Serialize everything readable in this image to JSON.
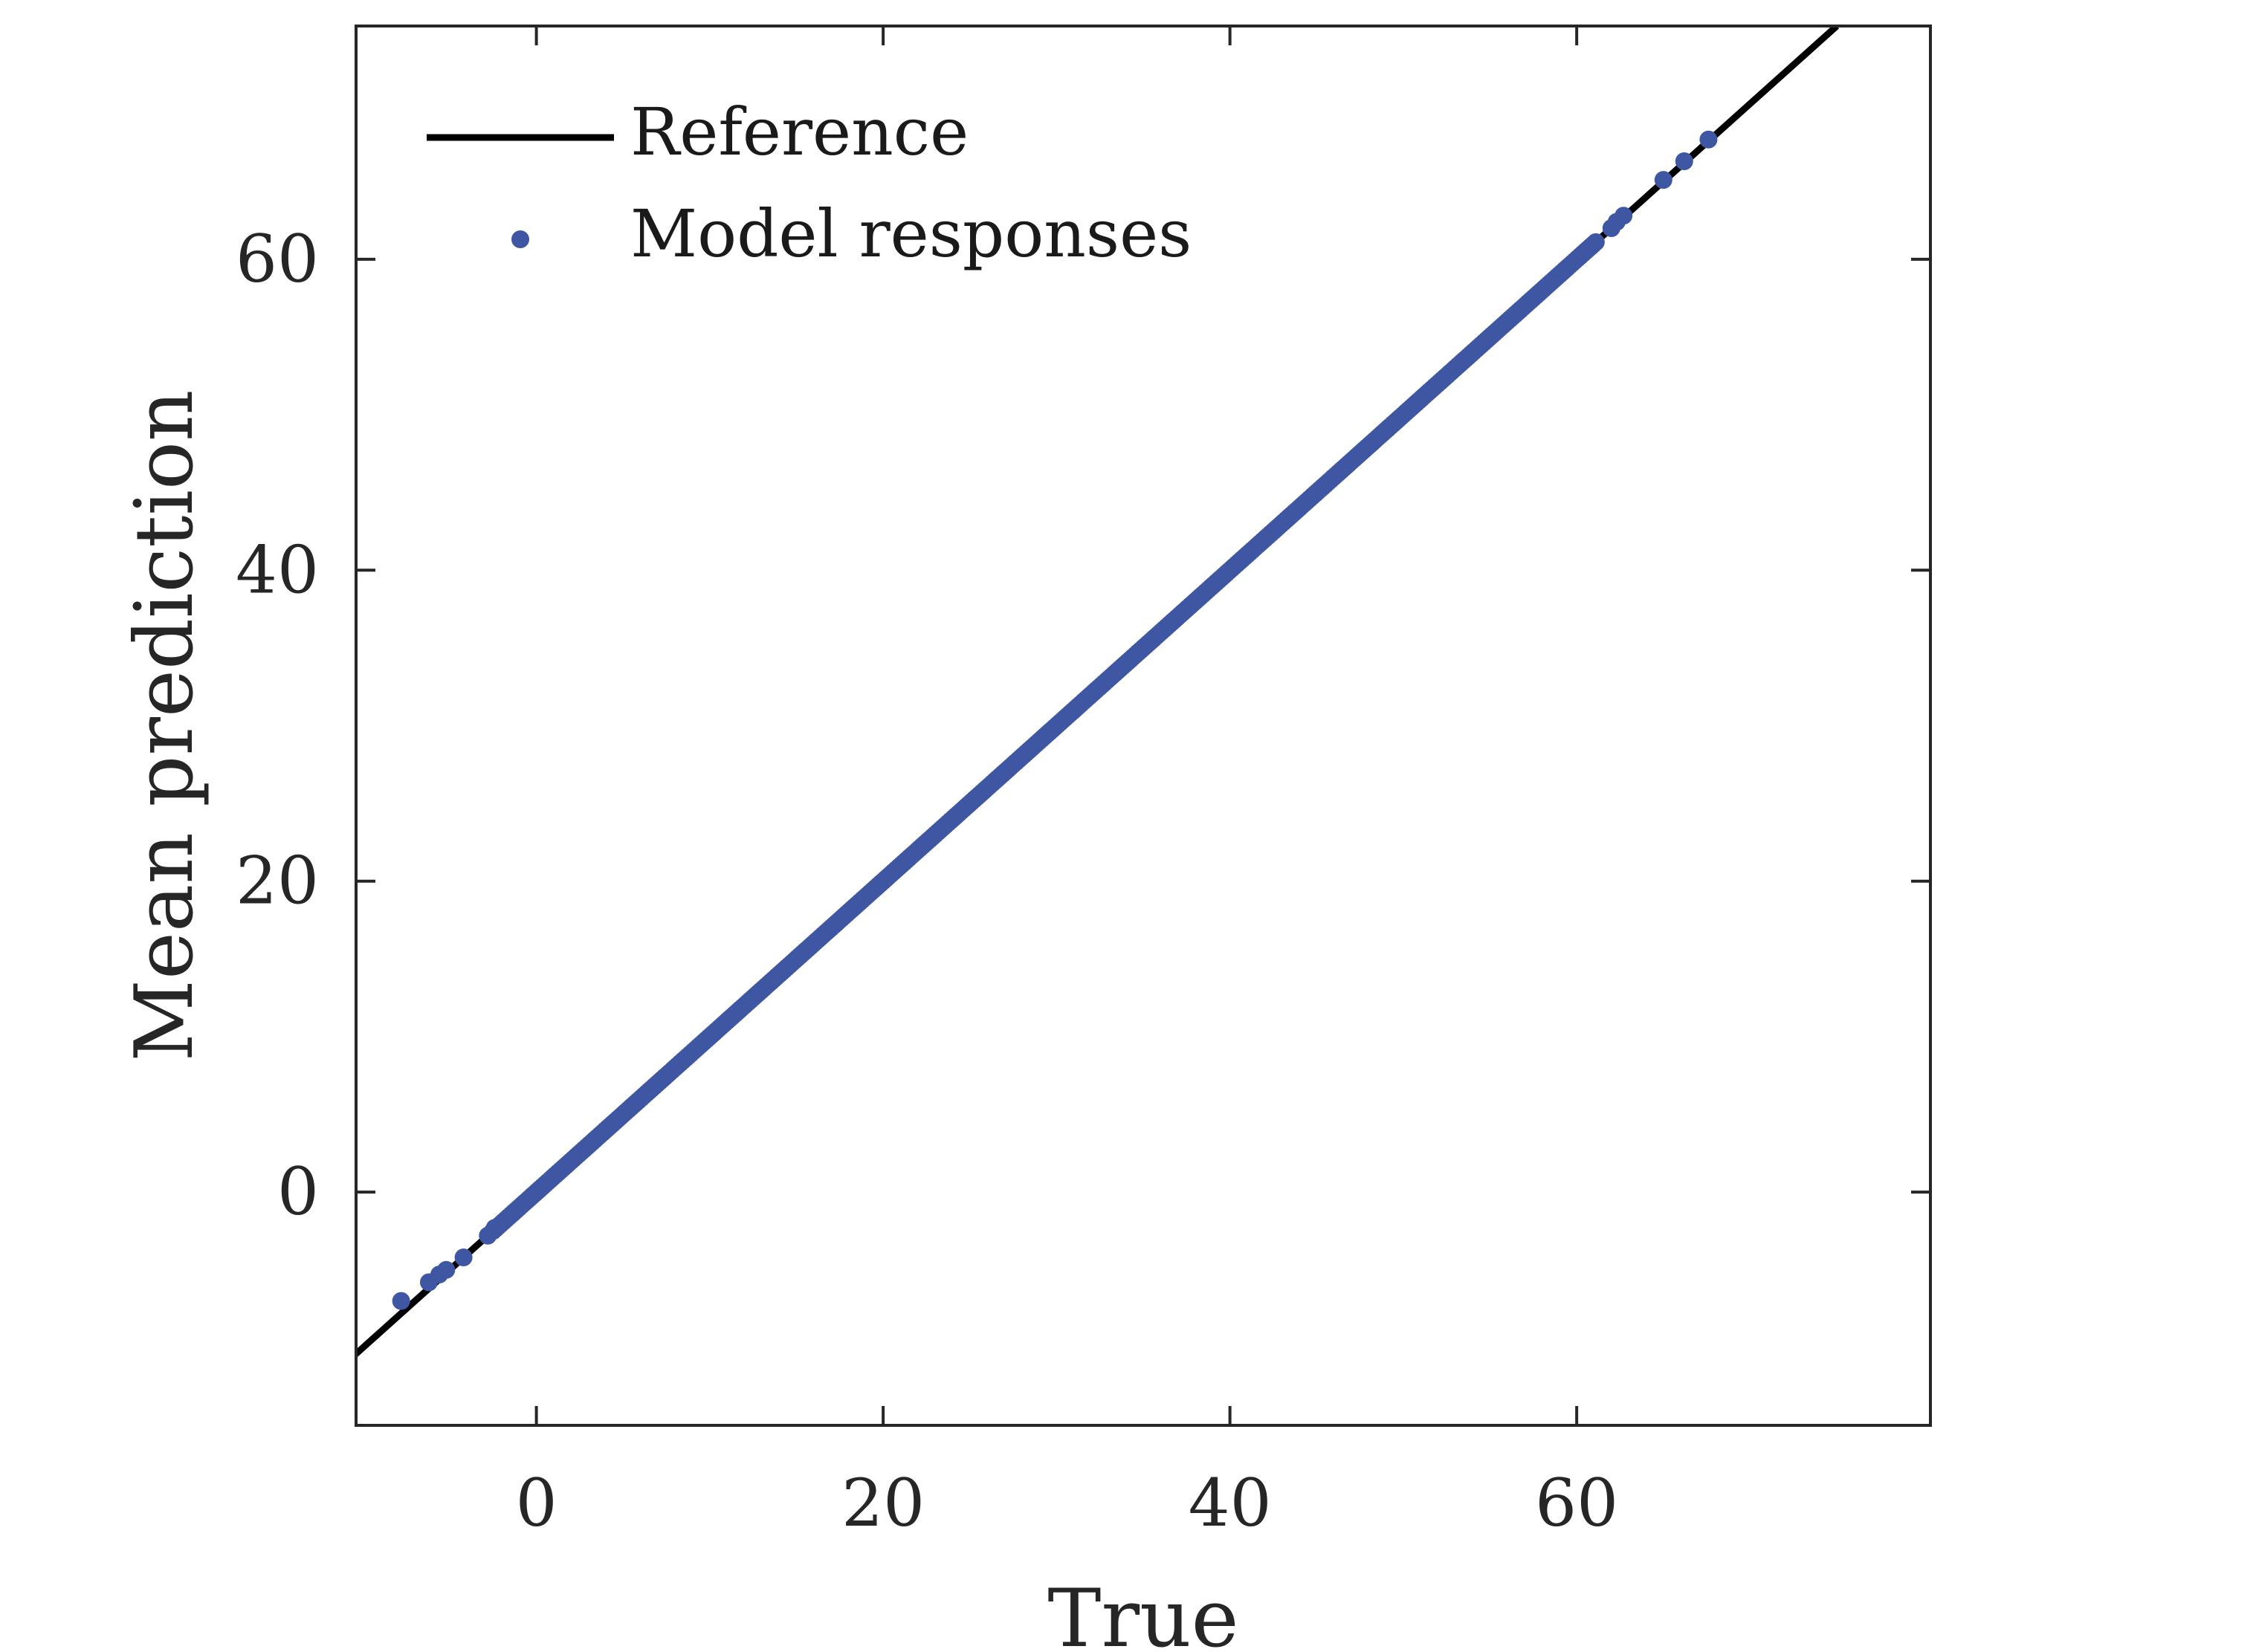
{
  "chart_data": {
    "type": "scatter",
    "xlabel": "True",
    "ylabel": "Mean prediction",
    "xlim": [
      -10.4,
      80.4
    ],
    "ylim": [
      -15.0,
      75.0
    ],
    "xticks": [
      0,
      20,
      40,
      60
    ],
    "yticks": [
      0,
      20,
      40,
      60
    ],
    "grid": false,
    "box": true,
    "legend": {
      "position": "top-left",
      "entries": [
        "Reference",
        "Model responses"
      ]
    },
    "colors": {
      "reference": "#000000",
      "model_responses": "#3f56a3",
      "axes": "#262626"
    },
    "series": [
      {
        "name": "Reference",
        "kind": "line",
        "x": [
          -15,
          75
        ],
        "y": [
          -15,
          75
        ]
      },
      {
        "name": "Model responses",
        "kind": "scatter",
        "sample_step": 0.15,
        "dense_range": [
          -2.5,
          61.2
        ],
        "points": [
          [
            -7.8,
            -7.0
          ],
          [
            -6.2,
            -5.8
          ],
          [
            -5.6,
            -5.3
          ],
          [
            -5.2,
            -5.0
          ],
          [
            -4.2,
            -4.2
          ],
          [
            -2.8,
            -2.8
          ],
          [
            -2.4,
            -2.3
          ],
          [
            62.0,
            62.0
          ],
          [
            62.3,
            62.4
          ],
          [
            62.7,
            62.8
          ],
          [
            65.0,
            65.1
          ],
          [
            66.2,
            66.3
          ],
          [
            67.6,
            67.7
          ]
        ]
      }
    ]
  }
}
